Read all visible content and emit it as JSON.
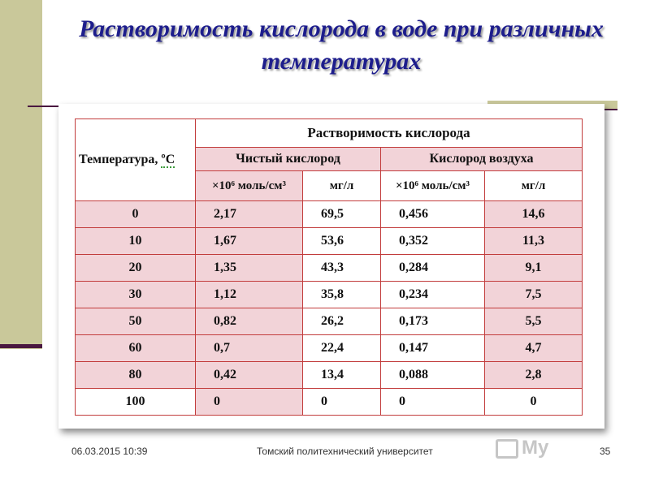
{
  "slide": {
    "title": "Растворимость кислорода в воде при различных температурах"
  },
  "table": {
    "group_header": "Растворимость кислорода",
    "temperature_header": "Температура, ",
    "temperature_unit": "ºC",
    "sub_headers": [
      "Чистый кислород",
      "Кислород воздуха"
    ],
    "unit_headers": [
      "×10⁶ моль/см³",
      "мг/л",
      "×10⁶ моль/см³",
      "мг/л"
    ],
    "rows": [
      {
        "t": "0",
        "a": "2,17",
        "b": "69,5",
        "c": "0,456",
        "d": "14,6"
      },
      {
        "t": "10",
        "a": "1,67",
        "b": "53,6",
        "c": "0,352",
        "d": "11,3"
      },
      {
        "t": "20",
        "a": "1,35",
        "b": "43,3",
        "c": "0,284",
        "d": "9,1"
      },
      {
        "t": "30",
        "a": "1,12",
        "b": "35,8",
        "c": "0,234",
        "d": "7,5"
      },
      {
        "t": "50",
        "a": "0,82",
        "b": "26,2",
        "c": "0,173",
        "d": "5,5"
      },
      {
        "t": "60",
        "a": "0,7",
        "b": "22,4",
        "c": "0,147",
        "d": "4,7"
      },
      {
        "t": "80",
        "a": "0,42",
        "b": "13,4",
        "c": "0,088",
        "d": "2,8"
      },
      {
        "t": "100",
        "a": "0",
        "b": "0",
        "c": "0",
        "d": "0"
      }
    ]
  },
  "footer": {
    "date": "06.03.2015 10:39",
    "organization": "Томский политехнический университет",
    "page_number": "35",
    "logo_text": "My"
  },
  "colors": {
    "title": "#1d1d8c",
    "accent_bar": "#c9c89a",
    "rule": "#4a1840",
    "cell_pink": "#f2d3d8",
    "cell_border": "#c23c3c"
  }
}
